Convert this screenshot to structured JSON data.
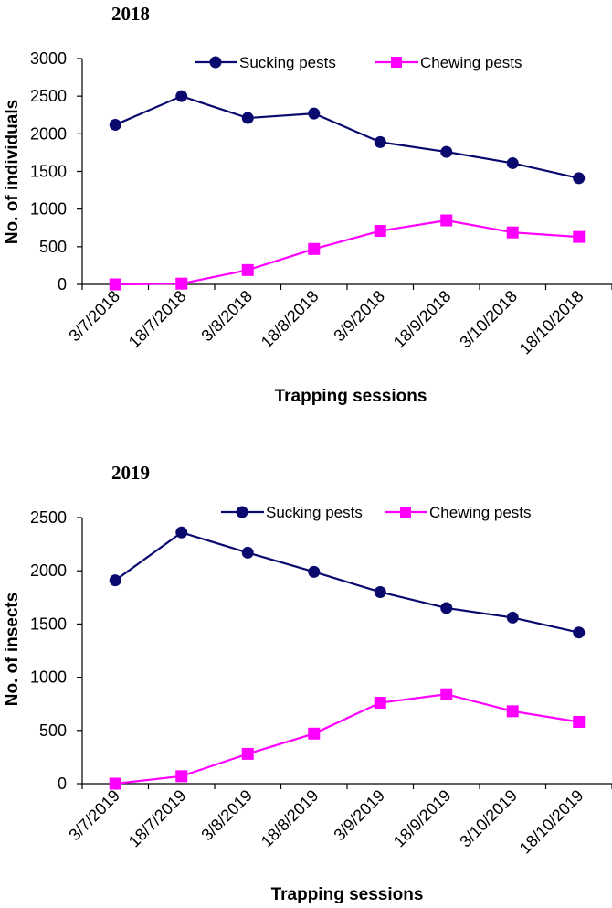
{
  "colors": {
    "sucking": "#0a0a6e",
    "chewing": "#ff00ff",
    "axis": "#000000"
  },
  "chart_data": [
    {
      "type": "line",
      "title": "2018",
      "xlabel": "Trapping sessions",
      "ylabel": "No. of individuals",
      "ylim": [
        0,
        3000
      ],
      "yticks": [
        "0",
        "500",
        "1000",
        "1500",
        "2000",
        "2500",
        "3000"
      ],
      "categories": [
        "3/7/2018",
        "18/7/2018",
        "3/8/2018",
        "18/8/2018",
        "3/9/2018",
        "18/9/2018",
        "3/10/2018",
        "18/10/2018"
      ],
      "series": [
        {
          "name": "Sucking pests",
          "marker": "circle",
          "values": [
            2120,
            2500,
            2210,
            2270,
            1890,
            1760,
            1610,
            1410
          ]
        },
        {
          "name": "Chewing pests",
          "marker": "square",
          "values": [
            0,
            10,
            190,
            470,
            710,
            850,
            690,
            630
          ]
        }
      ],
      "legend": "top"
    },
    {
      "type": "line",
      "title": "2019",
      "xlabel": "Trapping sessions",
      "ylabel": "No. of insects",
      "ylim": [
        0,
        2500
      ],
      "yticks": [
        "0",
        "500",
        "1000",
        "1500",
        "2000",
        "2500"
      ],
      "categories": [
        "3/7/2019",
        "18/7/2019",
        "3/8/2019",
        "18/8/2019",
        "3/9/2019",
        "18/9/2019",
        "3/10/2019",
        "18/10/2019"
      ],
      "series": [
        {
          "name": "Sucking pests",
          "marker": "circle",
          "values": [
            1910,
            2360,
            2170,
            1990,
            1800,
            1650,
            1560,
            1420
          ]
        },
        {
          "name": "Chewing pests",
          "marker": "square",
          "values": [
            0,
            70,
            280,
            470,
            760,
            840,
            680,
            580
          ]
        }
      ],
      "legend": "top"
    }
  ]
}
